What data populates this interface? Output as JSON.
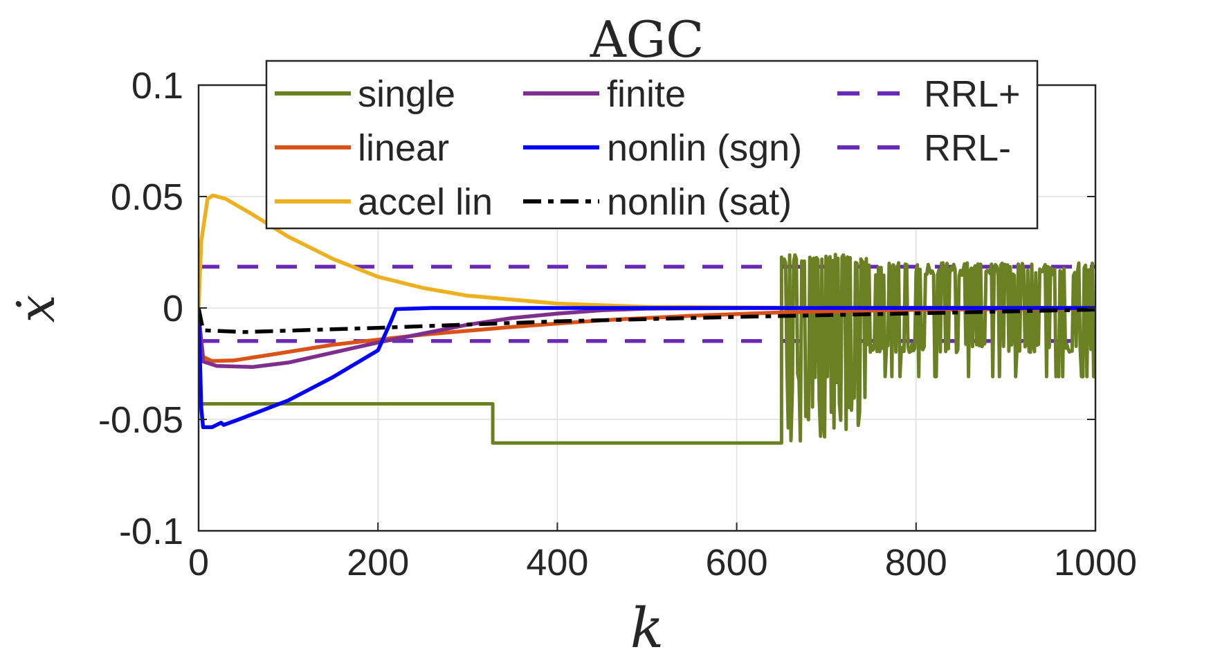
{
  "chart_data": {
    "type": "line",
    "title": "AGC",
    "xlabel": "k",
    "ylabel": "ẋ",
    "xlim": [
      0,
      1000
    ],
    "ylim": [
      -0.1,
      0.1
    ],
    "grid": true,
    "legend_position": "top-right",
    "xticks": [
      0,
      200,
      400,
      600,
      800,
      1000
    ],
    "xtick_labels": [
      "0",
      "200",
      "400",
      "600",
      "800",
      "1000"
    ],
    "yticks": [
      0.1,
      0.05,
      0,
      -0.05,
      -0.1
    ],
    "ytick_labels": [
      "0.1",
      "0.05",
      "0",
      "-0.05",
      "-0.1"
    ],
    "series": [
      {
        "name": "single",
        "color": "#6B8023",
        "style": "solid",
        "points": [
          [
            0,
            -0.043
          ],
          [
            328,
            -0.043
          ],
          [
            328,
            -0.0606
          ],
          [
            650,
            -0.0606
          ]
        ],
        "band": {
          "x0": 650,
          "x1": 1000,
          "transition": 745,
          "low1": -0.0606,
          "high1": 0.024,
          "low2": -0.0308,
          "high2": 0.0203
        }
      },
      {
        "name": "linear",
        "color": "#D95319",
        "style": "solid",
        "points": [
          [
            0,
            -0.003
          ],
          [
            5,
            -0.022
          ],
          [
            15,
            -0.0238
          ],
          [
            40,
            -0.0235
          ],
          [
            80,
            -0.021
          ],
          [
            150,
            -0.0165
          ],
          [
            250,
            -0.012
          ],
          [
            350,
            -0.0085
          ],
          [
            450,
            -0.0055
          ],
          [
            550,
            -0.0035
          ],
          [
            650,
            -0.002
          ],
          [
            800,
            -0.0008
          ],
          [
            1000,
            -0.0003
          ]
        ]
      },
      {
        "name": "accel lin",
        "color": "#EDB120",
        "style": "solid",
        "points": [
          [
            0,
            0.0
          ],
          [
            3,
            0.03
          ],
          [
            10,
            0.049
          ],
          [
            16,
            0.0505
          ],
          [
            30,
            0.049
          ],
          [
            60,
            0.042
          ],
          [
            100,
            0.032
          ],
          [
            150,
            0.022
          ],
          [
            200,
            0.014
          ],
          [
            250,
            0.009
          ],
          [
            300,
            0.0055
          ],
          [
            400,
            0.002
          ],
          [
            500,
            0.0005
          ],
          [
            700,
            0.0
          ],
          [
            1000,
            0.0
          ]
        ]
      },
      {
        "name": "finite",
        "color": "#7E2F8E",
        "style": "solid",
        "points": [
          [
            0,
            -0.003
          ],
          [
            5,
            -0.024
          ],
          [
            20,
            -0.026
          ],
          [
            60,
            -0.0265
          ],
          [
            100,
            -0.0245
          ],
          [
            150,
            -0.02
          ],
          [
            200,
            -0.0155
          ],
          [
            250,
            -0.0115
          ],
          [
            300,
            -0.0075
          ],
          [
            350,
            -0.0045
          ],
          [
            400,
            -0.0025
          ],
          [
            450,
            -0.001
          ],
          [
            500,
            -0.0003
          ],
          [
            600,
            0.0
          ],
          [
            1000,
            0.0
          ]
        ]
      },
      {
        "name": "nonlin (sgn)",
        "color": "#0000FF",
        "style": "solid",
        "points": [
          [
            0,
            0.0
          ],
          [
            3,
            -0.045
          ],
          [
            5,
            -0.0535
          ],
          [
            15,
            -0.0535
          ],
          [
            25,
            -0.0515
          ],
          [
            28,
            -0.0525
          ],
          [
            45,
            -0.05
          ],
          [
            100,
            -0.0415
          ],
          [
            150,
            -0.031
          ],
          [
            200,
            -0.019
          ],
          [
            215,
            -0.0055
          ],
          [
            220,
            -0.0005
          ],
          [
            260,
            0.0
          ],
          [
            1000,
            0.0
          ]
        ]
      },
      {
        "name": "nonlin (sat)",
        "color": "#000000",
        "style": "dashdot",
        "points": [
          [
            0,
            0.0
          ],
          [
            5,
            -0.01
          ],
          [
            50,
            -0.0108
          ],
          [
            200,
            -0.0089
          ],
          [
            400,
            -0.006
          ],
          [
            600,
            -0.004
          ],
          [
            800,
            -0.0024
          ],
          [
            1000,
            -0.0007
          ]
        ]
      },
      {
        "name": "RRL+",
        "color": "#6A2AB8",
        "style": "dashed",
        "points": [
          [
            0,
            0.0185
          ],
          [
            1000,
            0.0185
          ]
        ]
      },
      {
        "name": "RRL-",
        "color": "#6A2AB8",
        "style": "dashed",
        "points": [
          [
            0,
            -0.0148
          ],
          [
            1000,
            -0.0148
          ]
        ]
      }
    ],
    "legend_columns": [
      [
        "single",
        "linear",
        "accel lin"
      ],
      [
        "finite",
        "nonlin (sgn)",
        "nonlin (sat)"
      ],
      [
        "RRL+",
        "RRL-"
      ]
    ]
  }
}
